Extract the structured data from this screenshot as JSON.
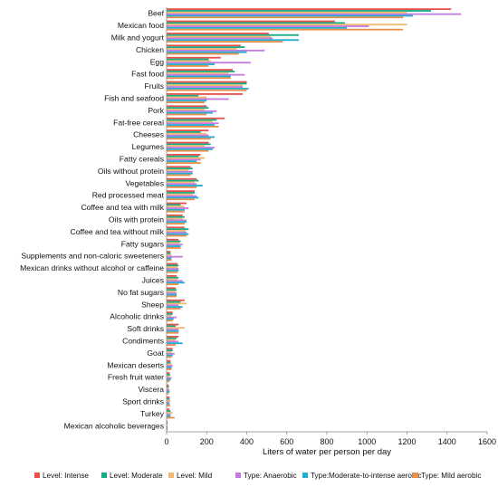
{
  "chart_data": {
    "type": "bar",
    "orientation": "horizontal",
    "title": "",
    "xlabel": "Liters of water per person per day",
    "ylabel": "",
    "xlim": [
      0,
      1600
    ],
    "xticks": [
      "0",
      "200",
      "400",
      "600",
      "800",
      "1000",
      "1200",
      "1400",
      "1600"
    ],
    "grid": false,
    "legend_position": "bottom",
    "categories": [
      "Beef",
      "Mexican food",
      "Milk and yogurt",
      "Chicken",
      "Egg",
      "Fast food",
      "Fruits",
      "Fish and seafood",
      "Pork",
      "Fat-free cereal",
      "Cheeses",
      "Legumes",
      "Fatty cereals",
      "Oils without protein",
      "Vegetables",
      "Red processed meat",
      "Coffee and tea with milk",
      "Oils with protein",
      "Coffee and tea without milk",
      "Fatty sugars",
      "Supplements and non-caloric sweeteners",
      "Mexican drinks without alcohol or caffeine",
      "Juices",
      "No fat sugars",
      "Sheep",
      "Alcoholic drinks",
      "Soft drinks",
      "Condiments",
      "Goat",
      "Mexican deserts",
      "Fresh fruit water",
      "Viscera",
      "Sport drinks",
      "Turkey",
      "Mexican alcoholic beverages"
    ],
    "series": [
      {
        "name": "Level: Intense",
        "color": "#e8504b",
        "values": [
          1420,
          840,
          510,
          370,
          270,
          330,
          400,
          380,
          200,
          290,
          210,
          210,
          170,
          120,
          150,
          140,
          100,
          80,
          90,
          60,
          20,
          55,
          50,
          45,
          90,
          30,
          60,
          60,
          30,
          20,
          15,
          10,
          15,
          15,
          5
        ]
      },
      {
        "name": "Level: Moderate",
        "color": "#18a986",
        "values": [
          1320,
          890,
          660,
          390,
          210,
          340,
          400,
          160,
          210,
          250,
          170,
          220,
          160,
          130,
          160,
          140,
          70,
          90,
          110,
          70,
          20,
          60,
          60,
          50,
          70,
          30,
          45,
          50,
          30,
          20,
          18,
          12,
          15,
          20,
          5
        ]
      },
      {
        "name": "Level: Mild",
        "color": "#f0ba70",
        "values": [
          1200,
          1200,
          520,
          350,
          220,
          310,
          380,
          200,
          190,
          230,
          200,
          190,
          190,
          110,
          140,
          130,
          90,
          80,
          95,
          65,
          25,
          55,
          55,
          45,
          100,
          25,
          90,
          45,
          25,
          25,
          15,
          12,
          20,
          30,
          5
        ]
      },
      {
        "name": "Type: Anaerobic",
        "color": "#c37be0",
        "values": [
          1470,
          1010,
          530,
          490,
          420,
          390,
          380,
          310,
          250,
          260,
          210,
          240,
          170,
          130,
          150,
          150,
          110,
          100,
          100,
          80,
          80,
          60,
          80,
          50,
          60,
          50,
          60,
          60,
          40,
          30,
          25,
          15,
          15,
          20,
          5
        ]
      },
      {
        "name": "Type:Moderate-to-intense aerobic",
        "color": "#20aed1",
        "values": [
          1230,
          900,
          660,
          400,
          240,
          320,
          410,
          200,
          230,
          240,
          240,
          230,
          150,
          130,
          180,
          160,
          90,
          100,
          110,
          70,
          25,
          60,
          90,
          50,
          80,
          35,
          60,
          80,
          30,
          25,
          20,
          15,
          15,
          20,
          5
        ]
      },
      {
        "name": "Type: Mild aerobic",
        "color": "#e8904a",
        "values": [
          1180,
          1180,
          580,
          360,
          210,
          320,
          400,
          190,
          200,
          260,
          220,
          210,
          170,
          120,
          150,
          140,
          90,
          90,
          100,
          70,
          25,
          55,
          60,
          50,
          70,
          30,
          60,
          45,
          25,
          25,
          15,
          12,
          18,
          40,
          5
        ]
      }
    ]
  }
}
